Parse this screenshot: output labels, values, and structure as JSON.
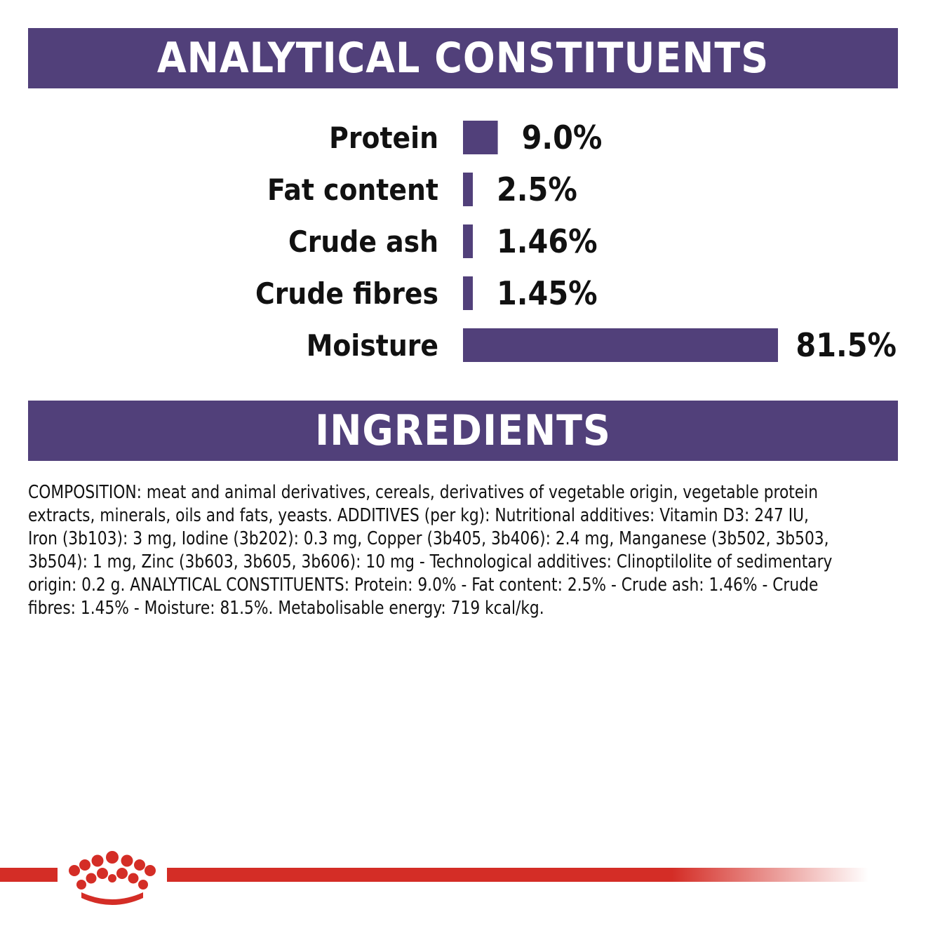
{
  "colors": {
    "accent": "#51407A",
    "brand_red": "#D42D26"
  },
  "headers": {
    "analytical": "ANALYTICAL CONSTITUENTS",
    "ingredients": "INGREDIENTS"
  },
  "chart_data": {
    "type": "bar",
    "orientation": "horizontal",
    "categories": [
      "Protein",
      "Fat content",
      "Crude ash",
      "Crude fibres",
      "Moisture"
    ],
    "values": [
      9.0,
      2.5,
      1.46,
      1.45,
      81.5
    ],
    "value_labels": [
      "9.0%",
      "2.5%",
      "1.46%",
      "1.45%",
      "81.5%"
    ],
    "unit": "%",
    "grid": false,
    "legend": "none"
  },
  "ingredients_text": "COMPOSITION: meat and animal derivatives, cereals, derivatives of vegetable origin, vegetable protein extracts, minerals, oils and fats, yeasts. ADDITIVES (per kg): Nutritional additives: Vitamin D3: 247 IU, Iron (3b103): 3 mg, Iodine (3b202): 0.3 mg, Copper (3b405, 3b406): 2.4 mg, Manganese (3b502, 3b503, 3b504): 1 mg, Zinc (3b603, 3b605, 3b606): 10 mg - Technological additives: Clinoptilolite of sedimentary origin: 0.2 g. ANALYTICAL CONSTITUENTS: Protein: 9.0% - Fat content: 2.5% - Crude ash: 1.46% - Crude fibres: 1.45% - Moisture: 81.5%. Metabolisable energy: 719 kcal/kg.",
  "footer": {
    "logo_icon": "crown-icon"
  }
}
